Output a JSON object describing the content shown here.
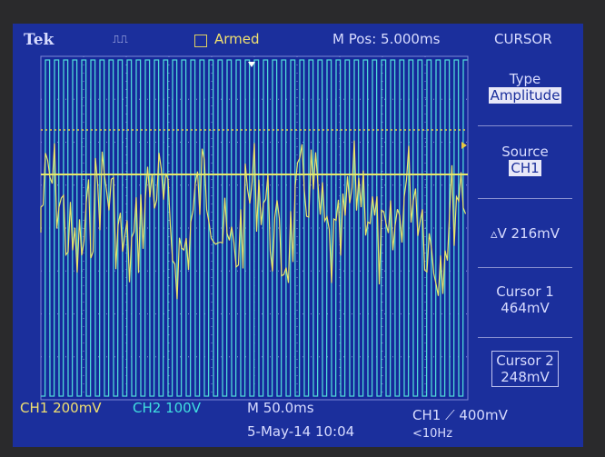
{
  "header": {
    "brand": "Tek",
    "trigger_state": "Armed",
    "position": "M Pos: 5.000ms",
    "menu_title": "CURSOR"
  },
  "menu": [
    {
      "label": "Type",
      "value": "Amplitude"
    },
    {
      "label": "Source",
      "value": "CH1"
    },
    {
      "label": "▵V 216mV"
    },
    {
      "label": "Cursor 1",
      "value": "464mV"
    },
    {
      "label": "Cursor 2",
      "value": "248mV"
    }
  ],
  "footer": {
    "ch1": "CH1  200mV",
    "ch2": "CH2  100V",
    "timebase": "M 50.0ms",
    "trigger": "CH1 ⟋ 400mV",
    "date": "5-May-14 10:04",
    "frequency": "<10Hz"
  }
}
